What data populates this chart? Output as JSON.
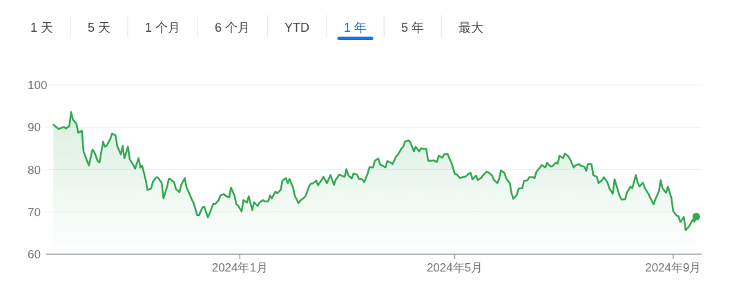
{
  "chart_data": [
    {
      "type": "other",
      "categories": [
        "1 天",
        "5 天",
        "1 个月",
        "6 个月",
        "YTD",
        "1 年",
        "5 年",
        "最大"
      ],
      "colors": [
        "#474747",
        "#474747",
        "#474747",
        "#474747",
        "#474747",
        "#1a73e8",
        "#474747",
        "#474747"
      ]
    },
    {
      "type": "area",
      "xlim": [
        "2023-09-14",
        "2024-09-17"
      ],
      "ylim": [
        60,
        100
      ],
      "yticks": [
        60,
        70,
        80,
        90,
        100
      ],
      "grid": "y",
      "xticks": [
        {
          "value": "2024-01-01",
          "label": "2024年1月"
        },
        {
          "value": "2024-05-01",
          "label": "2024年5月"
        },
        {
          "value": "2024-09-01",
          "label": "2024年9月"
        }
      ],
      "series": [
        {
          "type": "area",
          "color": "#34a853",
          "x": [
            "2023-09-18",
            "2023-09-21",
            "2023-09-24",
            "2023-09-25",
            "2023-09-27",
            "2023-09-28",
            "2023-09-29",
            "2023-10-01",
            "2023-10-02",
            "2023-10-04",
            "2023-10-05",
            "2023-10-07",
            "2023-10-08",
            "2023-10-10",
            "2023-10-11",
            "2023-10-13",
            "2023-10-14",
            "2023-10-16",
            "2023-10-17",
            "2023-10-18",
            "2023-10-20",
            "2023-10-21",
            "2023-10-23",
            "2023-10-24",
            "2023-10-26",
            "2023-10-27",
            "2023-10-28",
            "2023-10-30",
            "2023-10-31",
            "2023-11-02",
            "2023-11-03",
            "2023-11-05",
            "2023-11-06",
            "2023-11-07",
            "2023-11-09",
            "2023-11-10",
            "2023-11-12",
            "2023-11-13",
            "2023-11-15",
            "2023-11-16",
            "2023-11-18",
            "2023-11-19",
            "2023-11-21",
            "2023-11-22",
            "2023-11-23",
            "2023-11-25",
            "2023-11-26",
            "2023-11-28",
            "2023-11-29",
            "2023-12-01",
            "2023-12-02",
            "2023-12-04",
            "2023-12-05",
            "2023-12-06",
            "2023-12-08",
            "2023-12-09",
            "2023-12-11",
            "2023-12-12",
            "2023-12-14",
            "2023-12-15",
            "2023-12-17",
            "2023-12-18",
            "2023-12-20",
            "2023-12-21",
            "2023-12-23",
            "2023-12-24",
            "2023-12-26",
            "2023-12-27",
            "2023-12-29",
            "2023-12-30",
            "2023-12-31",
            "2024-01-02",
            "2024-01-03",
            "2024-01-05",
            "2024-01-06",
            "2024-01-08",
            "2024-01-09",
            "2024-01-11",
            "2024-01-12",
            "2024-01-14",
            "2024-01-15",
            "2024-01-17",
            "2024-01-18",
            "2024-01-19",
            "2024-01-21",
            "2024-01-22",
            "2024-01-24",
            "2024-01-25",
            "2024-01-27",
            "2024-01-28",
            "2024-01-29",
            "2024-01-31",
            "2024-02-01",
            "2024-02-03",
            "2024-02-04",
            "2024-02-06",
            "2024-02-07",
            "2024-02-09",
            "2024-02-10",
            "2024-02-11",
            "2024-02-13",
            "2024-02-14",
            "2024-02-16",
            "2024-02-17",
            "2024-02-19",
            "2024-02-20",
            "2024-02-21",
            "2024-02-23",
            "2024-02-24",
            "2024-02-26",
            "2024-02-27",
            "2024-02-29",
            "2024-03-01",
            "2024-03-02",
            "2024-03-04",
            "2024-03-05",
            "2024-03-07",
            "2024-03-08",
            "2024-03-10",
            "2024-03-11",
            "2024-03-13",
            "2024-03-14",
            "2024-03-16",
            "2024-03-17",
            "2024-03-19",
            "2024-03-20",
            "2024-03-21",
            "2024-03-23",
            "2024-03-24",
            "2024-03-26",
            "2024-03-27",
            "2024-03-29",
            "2024-03-30",
            "2024-04-01",
            "2024-04-02",
            "2024-04-03",
            "2024-04-05",
            "2024-04-06",
            "2024-04-08",
            "2024-04-09",
            "2024-04-11",
            "2024-04-12",
            "2024-04-14",
            "2024-04-15",
            "2024-04-16",
            "2024-04-18",
            "2024-04-19",
            "2024-04-21",
            "2024-04-22",
            "2024-04-24",
            "2024-04-25",
            "2024-04-27",
            "2024-04-28",
            "2024-04-29",
            "2024-05-01",
            "2024-05-02",
            "2024-05-04",
            "2024-05-06",
            "2024-05-07",
            "2024-05-09",
            "2024-05-10",
            "2024-05-11",
            "2024-05-13",
            "2024-05-14",
            "2024-05-16",
            "2024-05-17",
            "2024-05-19",
            "2024-05-20",
            "2024-05-22",
            "2024-05-23",
            "2024-05-25",
            "2024-05-26",
            "2024-05-27",
            "2024-05-29",
            "2024-05-30",
            "2024-06-01",
            "2024-06-02",
            "2024-06-03",
            "2024-06-05",
            "2024-06-06",
            "2024-06-08",
            "2024-06-09",
            "2024-06-11",
            "2024-06-12",
            "2024-06-14",
            "2024-06-15",
            "2024-06-16",
            "2024-06-18",
            "2024-06-19",
            "2024-06-21",
            "2024-06-22",
            "2024-06-24",
            "2024-06-25",
            "2024-06-27",
            "2024-06-28",
            "2024-06-29",
            "2024-07-01",
            "2024-07-02",
            "2024-07-04",
            "2024-07-05",
            "2024-07-07",
            "2024-07-08",
            "2024-07-10",
            "2024-07-11",
            "2024-07-13",
            "2024-07-14",
            "2024-07-15",
            "2024-07-17",
            "2024-07-18",
            "2024-07-20",
            "2024-07-21",
            "2024-07-23",
            "2024-07-24",
            "2024-07-26",
            "2024-07-27",
            "2024-07-29",
            "2024-07-30",
            "2024-07-31",
            "2024-08-02",
            "2024-08-03",
            "2024-08-05",
            "2024-08-06",
            "2024-08-08",
            "2024-08-09",
            "2024-08-11",
            "2024-08-12",
            "2024-08-13",
            "2024-08-15",
            "2024-08-16",
            "2024-08-18",
            "2024-08-19",
            "2024-08-21",
            "2024-08-22",
            "2024-08-24",
            "2024-08-25",
            "2024-08-26",
            "2024-08-28",
            "2024-08-29",
            "2024-08-31",
            "2024-09-01",
            "2024-09-03",
            "2024-09-04",
            "2024-09-05",
            "2024-09-07",
            "2024-09-08",
            "2024-09-10",
            "2024-09-12",
            "2024-09-13",
            "2024-09-14"
          ],
          "values": [
            90.6,
            89.6,
            90.1,
            89.7,
            90.3,
            93.6,
            91.8,
            90.8,
            88.7,
            89.2,
            84.3,
            82.0,
            81.0,
            84.7,
            84.2,
            82.0,
            81.7,
            86.6,
            85.4,
            85.6,
            87.2,
            88.5,
            88.1,
            85.5,
            83.6,
            85.6,
            82.7,
            85.4,
            82.4,
            81.1,
            80.2,
            82.7,
            80.5,
            80.9,
            77.5,
            75.2,
            75.5,
            77.1,
            78.2,
            78.1,
            76.8,
            73.2,
            75.9,
            77.8,
            77.7,
            77.0,
            75.4,
            74.7,
            76.4,
            78.0,
            75.8,
            73.9,
            72.9,
            72.1,
            69.2,
            69.2,
            71.1,
            71.2,
            68.7,
            69.7,
            71.9,
            71.8,
            72.7,
            73.9,
            74.2,
            73.8,
            73.4,
            75.7,
            73.9,
            71.8,
            71.5,
            70.1,
            72.8,
            72.2,
            73.7,
            70.4,
            72.3,
            71.4,
            72.2,
            72.8,
            72.5,
            72.5,
            73.9,
            73.2,
            74.8,
            74.4,
            75.2,
            77.4,
            78.0,
            76.8,
            77.8,
            75.7,
            73.8,
            72.1,
            72.7,
            73.3,
            73.7,
            76.1,
            76.7,
            76.7,
            77.4,
            76.3,
            77.5,
            78.3,
            76.8,
            77.7,
            78.7,
            76.4,
            77.6,
            78.8,
            78.6,
            78.3,
            80.1,
            78.7,
            77.9,
            79.1,
            78.8,
            77.8,
            77.7,
            77.0,
            79.1,
            80.6,
            80.5,
            82.1,
            82.6,
            81.2,
            81.0,
            80.5,
            82.0,
            81.6,
            81.3,
            83.1,
            83.5,
            85.0,
            85.4,
            86.6,
            86.9,
            86.5,
            84.3,
            85.4,
            84.3,
            85.0,
            84.9,
            84.9,
            82.1,
            82.1,
            82.2,
            81.8,
            83.3,
            82.8,
            83.6,
            83.7,
            82.6,
            81.8,
            79.0,
            78.9,
            78.0,
            78.3,
            78.3,
            79.1,
            79.2,
            77.7,
            78.6,
            77.5,
            78.1,
            78.7,
            79.5,
            79.3,
            78.6,
            77.6,
            76.8,
            77.8,
            79.8,
            79.2,
            77.9,
            76.8,
            74.4,
            73.1,
            74.1,
            75.5,
            75.6,
            77.3,
            77.5,
            78.2,
            78.2,
            78.0,
            79.5,
            80.5,
            81.1,
            80.5,
            81.6,
            80.7,
            80.8,
            81.7,
            81.4,
            83.3,
            82.7,
            83.8,
            83.1,
            82.4,
            80.5,
            81.0,
            81.3,
            80.9,
            80.7,
            79.7,
            81.3,
            81.3,
            78.7,
            78.3,
            76.8,
            77.5,
            78.2,
            77.0,
            75.6,
            74.3,
            77.7,
            76.3,
            73.6,
            72.9,
            73.0,
            74.6,
            76.0,
            75.6,
            78.7,
            77.0,
            76.0,
            76.9,
            75.7,
            74.3,
            73.4,
            71.8,
            73.0,
            74.9,
            77.5,
            75.6,
            74.5,
            76.0,
            73.3,
            70.2,
            69.1,
            69.0,
            67.6,
            68.8,
            65.7,
            66.6,
            68.2,
            67.7,
            68.9
          ]
        },
        {
          "type": "scatter",
          "color": "#34a853",
          "marker": "circle",
          "x": [
            "2024-09-14"
          ],
          "values": [
            68.9
          ]
        }
      ]
    }
  ]
}
